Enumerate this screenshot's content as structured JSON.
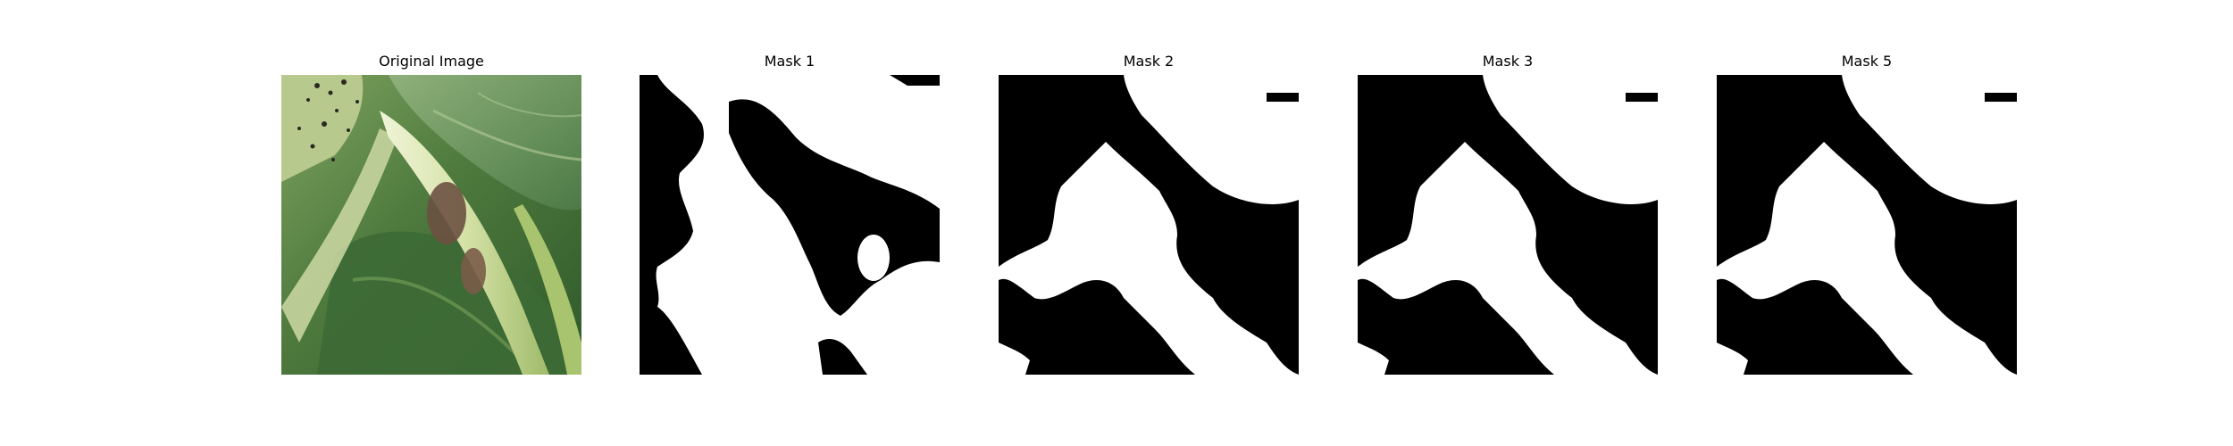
{
  "panels": [
    {
      "title": "Original Image",
      "kind": "photo"
    },
    {
      "title": "Mask 1",
      "kind": "mask1"
    },
    {
      "title": "Mask 2",
      "kind": "mask2"
    },
    {
      "title": "Mask 3",
      "kind": "mask3"
    },
    {
      "title": "Mask 5",
      "kind": "mask5"
    }
  ],
  "colors": {
    "background": "#ffffff",
    "mask_foreground": "#ffffff",
    "mask_background": "#000000",
    "leaf_dark": "#3f6b34",
    "leaf_mid": "#6f9a55",
    "leaf_light": "#b9cf8f",
    "stem": "#d9e3b0",
    "brown": "#6b5141"
  }
}
